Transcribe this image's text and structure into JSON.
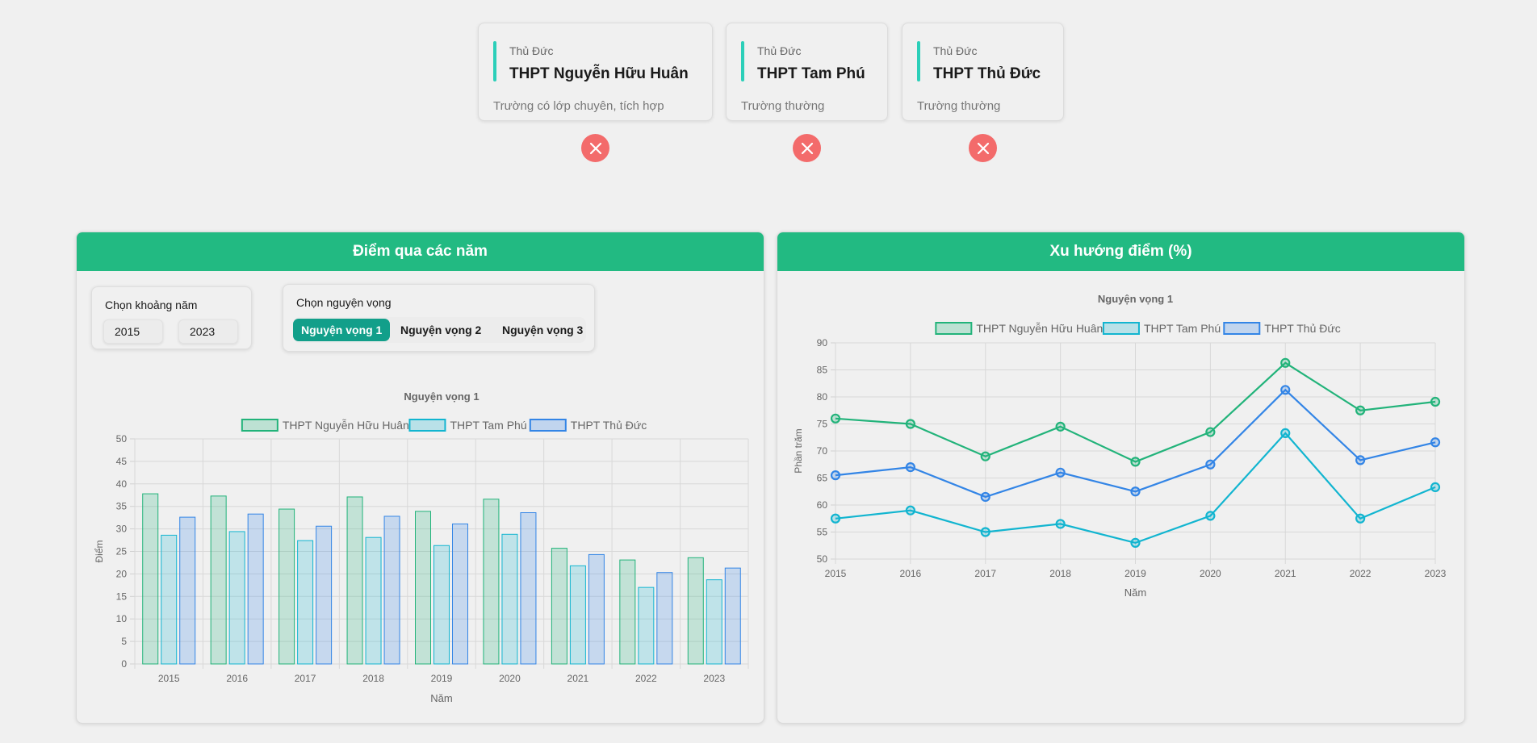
{
  "schools": [
    {
      "district": "Thủ Đức",
      "name": "THPT Nguyễn Hữu Huân",
      "type": "Trường có lớp chuyên, tích hợp"
    },
    {
      "district": "Thủ Đức",
      "name": "THPT Tam Phú",
      "type": "Trường thường"
    },
    {
      "district": "Thủ Đức",
      "name": "THPT Thủ Đức",
      "type": "Trường thường"
    }
  ],
  "colors": {
    "header": "#22ba82",
    "remove": "#f36b6b",
    "accent": "#2ccfb9",
    "active_tab": "#129f8a",
    "series": [
      "#22b37a",
      "#12b5d0",
      "#3385e6"
    ]
  },
  "left_panel": {
    "title": "Điểm qua các năm",
    "year_range": {
      "label": "Chọn khoảng năm",
      "from": "2015",
      "to": "2023"
    },
    "wish": {
      "label": "Chọn nguyện vọng",
      "options": [
        "Nguyện vọng 1",
        "Nguyện vọng 2",
        "Nguyện vọng 3"
      ],
      "selected": "Nguyện vọng 1"
    }
  },
  "right_panel": {
    "title": "Xu hướng điểm (%)"
  },
  "chart_data": [
    {
      "type": "bar",
      "title": "Nguyện vọng 1",
      "xlabel": "Năm",
      "ylabel": "Điểm",
      "ylim": [
        0,
        50
      ],
      "yticks": [
        0,
        5,
        10,
        15,
        20,
        25,
        30,
        35,
        40,
        45,
        50
      ],
      "categories": [
        "2015",
        "2016",
        "2017",
        "2018",
        "2019",
        "2020",
        "2021",
        "2022",
        "2023"
      ],
      "legend": "top",
      "grid": true,
      "series": [
        {
          "name": "THPT Nguyễn Hữu Huân",
          "values": [
            37.8,
            37.3,
            34.4,
            37.1,
            33.9,
            36.6,
            25.7,
            23.1,
            23.6
          ]
        },
        {
          "name": "THPT Tam Phú",
          "values": [
            28.6,
            29.4,
            27.4,
            28.1,
            26.3,
            28.8,
            21.8,
            17.0,
            18.7
          ]
        },
        {
          "name": "THPT Thủ Đức",
          "values": [
            32.6,
            33.3,
            30.6,
            32.8,
            31.1,
            33.6,
            24.3,
            20.3,
            21.3
          ]
        }
      ]
    },
    {
      "type": "line",
      "title": "Nguyện vọng 1",
      "xlabel": "Năm",
      "ylabel": "Phần trăm",
      "ylim": [
        50,
        90
      ],
      "yticks": [
        50,
        55,
        60,
        65,
        70,
        75,
        80,
        85,
        90
      ],
      "categories": [
        "2015",
        "2016",
        "2017",
        "2018",
        "2019",
        "2020",
        "2021",
        "2022",
        "2023"
      ],
      "legend": "top",
      "grid": true,
      "series": [
        {
          "name": "THPT Nguyễn Hữu Huân",
          "values": [
            76.0,
            75.0,
            69.0,
            74.5,
            68.0,
            73.5,
            86.3,
            77.5,
            79.1
          ]
        },
        {
          "name": "THPT Tam Phú",
          "values": [
            57.5,
            59.0,
            55.0,
            56.5,
            53.0,
            58.0,
            73.3,
            57.5,
            63.3
          ]
        },
        {
          "name": "THPT Thủ Đức",
          "values": [
            65.5,
            67.0,
            61.5,
            66.0,
            62.5,
            67.5,
            81.3,
            68.3,
            71.6
          ]
        }
      ]
    }
  ]
}
